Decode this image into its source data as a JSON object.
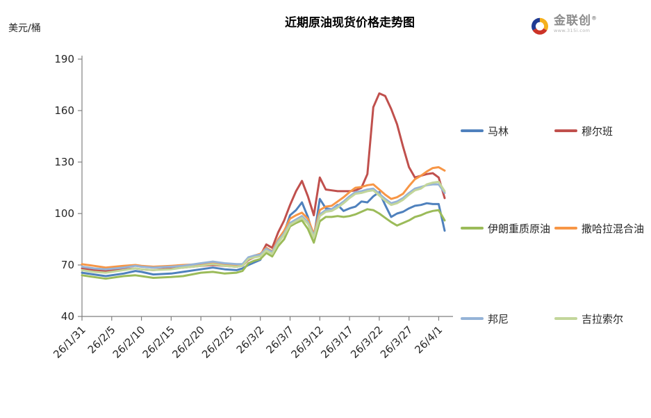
{
  "title": "近期原油现货价格走势图",
  "y_axis_unit": "美元/桶",
  "logo": {
    "name": "金联创",
    "registered": "®",
    "url": "www.315i.com"
  },
  "chart_data": {
    "type": "line",
    "title": "近期原油现货价格走势图",
    "ylabel": "美元/桶",
    "ylim": [
      40,
      190
    ],
    "y_ticks": [
      40,
      70,
      100,
      130,
      160,
      190
    ],
    "grid": false,
    "legend_position": "right",
    "x_tick_labels": [
      "26/1/31",
      "26/2/5",
      "26/2/10",
      "26/2/15",
      "26/2/20",
      "26/2/25",
      "26/3/2",
      "26/3/7",
      "26/3/12",
      "26/3/17",
      "26/3/22",
      "26/3/27",
      "26/4/1"
    ],
    "x_tick_days": [
      0,
      5,
      10,
      15,
      20,
      25,
      30,
      35,
      40,
      45,
      50,
      55,
      60
    ],
    "x_days": [
      0,
      2,
      4,
      7,
      9,
      10,
      12,
      15,
      17,
      20,
      22,
      24,
      26,
      27,
      28,
      29,
      30,
      31,
      32,
      33,
      34,
      35,
      36,
      37,
      38,
      39,
      40,
      41,
      42,
      43,
      44,
      45,
      46,
      47,
      48,
      49,
      50,
      51,
      52,
      53,
      54,
      55,
      56,
      57,
      58,
      59,
      60,
      61
    ],
    "series": [
      {
        "name": "马林",
        "color": "#4F81BD",
        "values": [
          65.5,
          64.5,
          63.5,
          65,
          66.5,
          66,
          64.5,
          65,
          66,
          67.5,
          68.5,
          67.5,
          67,
          68,
          70,
          71.5,
          73,
          80,
          77.5,
          84,
          89,
          99,
          102,
          106.5,
          98,
          86,
          108.5,
          103,
          102.5,
          105,
          101.5,
          103,
          104,
          107,
          106.5,
          110,
          112.5,
          105,
          98,
          100,
          101,
          103,
          104.5,
          105,
          106,
          105.5,
          105.5,
          90
        ]
      },
      {
        "name": "穆尔班",
        "color": "#C0504D",
        "values": [
          68,
          67,
          66.5,
          67.5,
          68,
          67.5,
          67,
          68,
          68.5,
          69.5,
          70,
          69.5,
          69,
          69.5,
          73,
          74.5,
          75.5,
          82,
          80,
          89,
          96,
          105,
          113,
          119,
          110,
          99,
          121,
          114,
          113.5,
          113,
          113,
          113,
          113.5,
          115,
          123,
          162,
          170,
          168.5,
          161,
          152,
          139,
          127,
          121,
          122,
          123,
          123.5,
          121,
          109
        ]
      },
      {
        "name": "伊朗重质原油",
        "color": "#9BBB59",
        "values": [
          64,
          63,
          62,
          63.5,
          64,
          63.5,
          62.5,
          63,
          63.5,
          65.5,
          66,
          65,
          65.5,
          66.5,
          71,
          72.5,
          73.5,
          77,
          75,
          81,
          85,
          92.5,
          94.5,
          96,
          91,
          83,
          95.5,
          98,
          98,
          98.5,
          98,
          98.5,
          99.5,
          101,
          102.5,
          102,
          100,
          97.5,
          95,
          93,
          94.5,
          96,
          98,
          99,
          100.5,
          101.5,
          102,
          96
        ]
      },
      {
        "name": "撒哈拉混合油",
        "color": "#F79646",
        "values": [
          70.5,
          69.5,
          68.5,
          69.5,
          70,
          69.5,
          69,
          69.5,
          70,
          70.5,
          71.5,
          70.5,
          70,
          70.5,
          74,
          75.5,
          76.5,
          80,
          78,
          85,
          90,
          97,
          99,
          100.5,
          97,
          88,
          102,
          104,
          104.5,
          107,
          109.5,
          112.5,
          115,
          115.5,
          116.5,
          117,
          114,
          111,
          108.5,
          109.5,
          111.5,
          116,
          120,
          122,
          124.5,
          126.5,
          127,
          125
        ]
      },
      {
        "name": "邦尼",
        "color": "#95B3D7",
        "values": [
          69,
          68,
          67.5,
          68.5,
          69.5,
          69,
          68.5,
          69,
          69.5,
          71,
          72,
          71,
          70.5,
          70.5,
          74.5,
          75.5,
          76,
          79.5,
          77.5,
          84,
          88.5,
          94.5,
          96.5,
          98.5,
          95,
          87,
          99.5,
          102,
          102.5,
          104.5,
          107,
          110,
          112.5,
          113,
          114,
          114.5,
          111.5,
          108.5,
          106,
          107,
          109,
          112,
          114.5,
          115.5,
          116.5,
          117,
          117,
          112
        ]
      },
      {
        "name": "吉拉索尔",
        "color": "#C3D69B",
        "values": [
          67,
          66,
          65.5,
          67,
          68,
          67.5,
          67,
          67.5,
          68.5,
          69.5,
          70.5,
          69.5,
          69,
          69.5,
          73.5,
          74.5,
          75,
          78.5,
          76.5,
          83,
          87.5,
          93.5,
          95.5,
          97.5,
          94,
          86,
          98.5,
          101,
          101.5,
          103.5,
          106,
          109,
          111.5,
          112,
          113,
          113.5,
          110.5,
          107.5,
          105,
          106,
          108,
          111,
          113.5,
          114.5,
          117,
          118,
          118.5,
          113
        ]
      }
    ]
  }
}
